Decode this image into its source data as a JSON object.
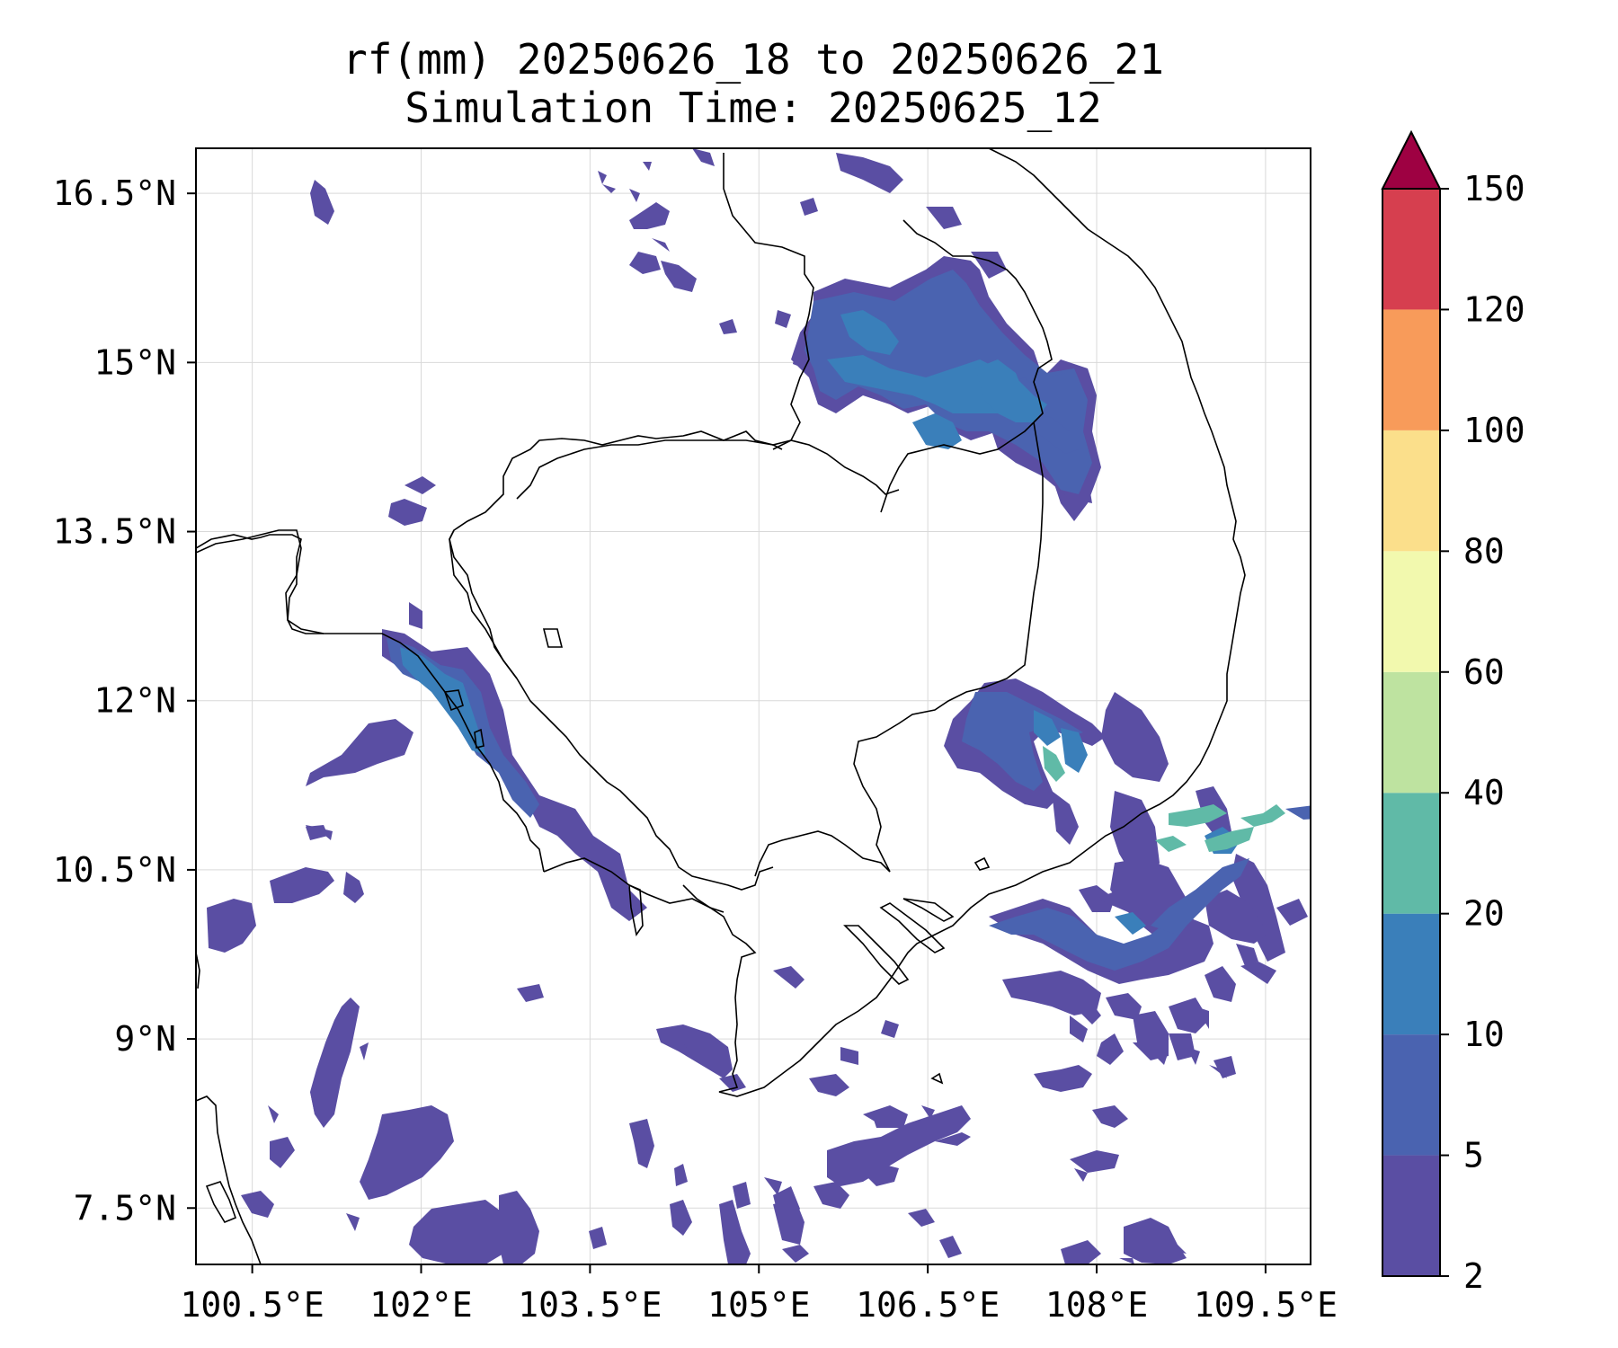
{
  "title": {
    "line1": "rf(mm) 20250626_18 to 20250626_21",
    "line2": "Simulation Time: 20250625_12"
  },
  "map": {
    "extent": {
      "lon_min": 100.0,
      "lon_max": 109.9,
      "lat_min": 7.0,
      "lat_max": 16.9
    },
    "x_ticks": [
      {
        "value": 100.5,
        "label": "100.5°E"
      },
      {
        "value": 102.0,
        "label": "102°E"
      },
      {
        "value": 103.5,
        "label": "103.5°E"
      },
      {
        "value": 105.0,
        "label": "105°E"
      },
      {
        "value": 106.5,
        "label": "106.5°E"
      },
      {
        "value": 108.0,
        "label": "108°E"
      },
      {
        "value": 109.5,
        "label": "109.5°E"
      }
    ],
    "y_ticks": [
      {
        "value": 16.5,
        "label": "16.5°N"
      },
      {
        "value": 15.0,
        "label": "15°N"
      },
      {
        "value": 13.5,
        "label": "13.5°N"
      },
      {
        "value": 12.0,
        "label": "12°N"
      },
      {
        "value": 10.5,
        "label": "10.5°N"
      },
      {
        "value": 9.0,
        "label": "9°N"
      },
      {
        "value": 7.5,
        "label": "7.5°N"
      }
    ],
    "grid": true,
    "coastlines": true,
    "country_borders": true
  },
  "colorbar": {
    "levels": [
      {
        "label": "2",
        "color": "#5a4ea3"
      },
      {
        "label": "5",
        "color": "#4a63b0"
      },
      {
        "label": "10",
        "color": "#3a7fba"
      },
      {
        "label": "20",
        "color": "#60baa7"
      },
      {
        "label": "40",
        "color": "#bee3a0"
      },
      {
        "label": "60",
        "color": "#f2f9ae"
      },
      {
        "label": "80",
        "color": "#fbdf8b"
      },
      {
        "label": "100",
        "color": "#f89b5a"
      },
      {
        "label": "120",
        "color": "#d63f4f"
      },
      {
        "label": "150",
        "color": "#9e0142"
      }
    ],
    "extend": "max",
    "units": "mm"
  }
}
